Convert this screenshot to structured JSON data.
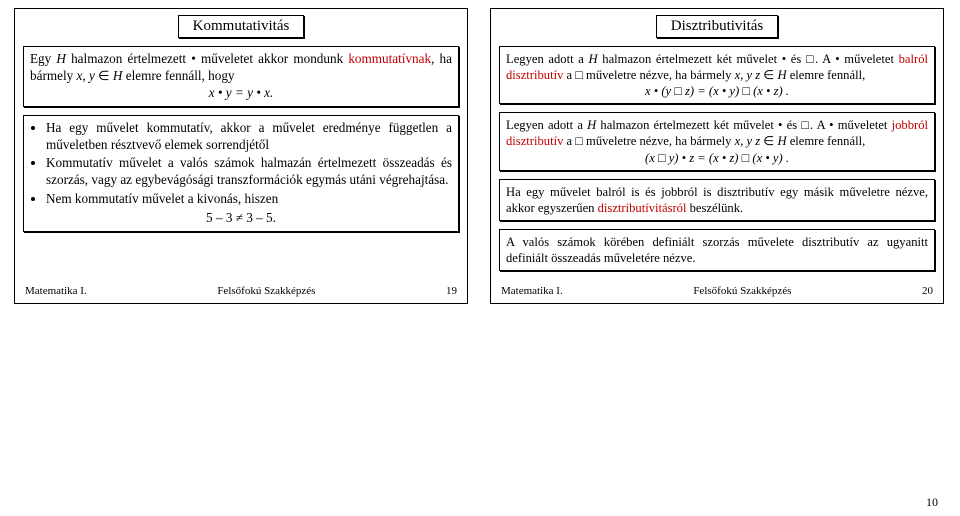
{
  "left": {
    "title": "Kommutativitás",
    "block1": {
      "t1a": "Egy ",
      "t1b": "H",
      "t1c": " halmazon értelmezett • műveletet akkor mondunk ",
      "t1d": "kommutatívnak",
      "t1e": ", ha bármely ",
      "t1f": "x, y",
      "t1g": " ∈ ",
      "t1h": "H",
      "t1i": " elemre fennáll, hogy",
      "eq": "x • y = y • x."
    },
    "block2": {
      "l1": "Ha egy művelet kommutatív, akkor a művelet eredménye független a műveletben résztvevő elemek sorrendjétől",
      "l2": "Kommutatív művelet a valós számok halmazán értelmezett összeadás és szorzás, vagy az egybevágósági transzformációk egymás utáni végrehajtása.",
      "l3": "Nem kommutatív művelet a kivonás, hiszen",
      "eq": "5 – 3 ≠ 3 – 5."
    },
    "footer_left": "Matematika I.",
    "footer_mid": "Felsőfokú Szakképzés",
    "footer_num": "19"
  },
  "right": {
    "title": "Disztributivitás",
    "block1": {
      "t1a": "Legyen adott a ",
      "t1b": "H",
      "t1c": " halmazon értelmezett két művelet • és □. A • műveletet ",
      "t1d": "balról disztributív",
      "t1e": " a □ műveletre nézve, ha bármely ",
      "t1f": "x, y z",
      "t1g": " ∈ ",
      "t1h": "H",
      "t1i": " elemre fennáll,",
      "eq": "x • (y □ z) = (x • y) □ (x • z) ."
    },
    "block2": {
      "t1a": "Legyen adott a ",
      "t1b": "H",
      "t1c": " halmazon értelmezett két művelet • és □. A • műveletet ",
      "t1d": "jobbról disztributív",
      "t1e": " a □ műveletre nézve, ha bármely ",
      "t1f": "x, y z",
      "t1g": " ∈ ",
      "t1h": "H",
      "t1i": " elemre fennáll,",
      "eq": "(x □ y) • z  = (x • z) □ (x • y) ."
    },
    "block3": {
      "t1": "Ha egy művelet balról is és jobbról is disztributív egy másik műveletre nézve, akkor egyszerűen ",
      "t2": "disztributívitásról",
      "t3": " beszélünk."
    },
    "block4": {
      "t1": "A valós számok körében definiált szorzás művelete disztributív az ugyanitt definiált összeadás műveletére nézve."
    },
    "footer_left": "Matematika I.",
    "footer_mid": "Felsőfokú Szakképzés",
    "footer_num": "20"
  },
  "page_number": "10"
}
